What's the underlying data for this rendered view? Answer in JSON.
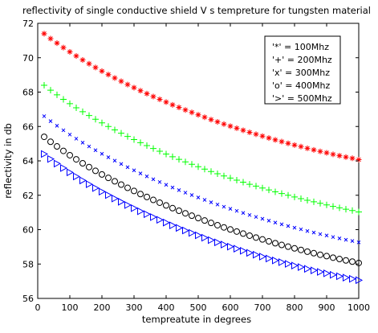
{
  "chart_data": {
    "type": "scatter",
    "title": "reflectivity of single conductive shield V s tempreture for tungsten material",
    "xlabel": "tempreatute in degrees",
    "ylabel": "reflectivity in db",
    "xlim": [
      0,
      1000
    ],
    "ylim": [
      56,
      72
    ],
    "xticks": [
      0,
      100,
      200,
      300,
      400,
      500,
      600,
      700,
      800,
      900,
      1000
    ],
    "yticks": [
      56,
      58,
      60,
      62,
      64,
      66,
      68,
      70,
      72
    ],
    "grid": false,
    "legend_position": "top-right",
    "x": [
      20,
      40,
      60,
      80,
      100,
      120,
      140,
      160,
      180,
      200,
      220,
      240,
      260,
      280,
      300,
      320,
      340,
      360,
      380,
      400,
      420,
      440,
      460,
      480,
      500,
      520,
      540,
      560,
      580,
      600,
      620,
      640,
      660,
      680,
      700,
      720,
      740,
      760,
      780,
      800,
      820,
      840,
      860,
      880,
      900,
      920,
      940,
      960,
      980,
      1000
    ],
    "series": [
      {
        "name": "'*' = 100Mhz",
        "marker": "*",
        "color": "#ff0000",
        "values": [
          71.4,
          71.11,
          70.85,
          70.59,
          70.34,
          70.1,
          69.87,
          69.65,
          69.43,
          69.22,
          69.02,
          68.82,
          68.63,
          68.44,
          68.26,
          68.08,
          67.91,
          67.74,
          67.58,
          67.42,
          67.26,
          67.11,
          66.96,
          66.82,
          66.68,
          66.54,
          66.4,
          66.27,
          66.14,
          66.02,
          65.9,
          65.78,
          65.66,
          65.55,
          65.44,
          65.33,
          65.22,
          65.12,
          65.02,
          64.92,
          64.83,
          64.73,
          64.64,
          64.55,
          64.47,
          64.38,
          64.3,
          64.22,
          64.15,
          64.07
        ]
      },
      {
        "name": "'+' = 200Mhz",
        "marker": "+",
        "color": "#00ff00",
        "values": [
          68.4,
          68.11,
          67.84,
          67.58,
          67.33,
          67.09,
          66.86,
          66.64,
          66.42,
          66.21,
          66.0,
          65.8,
          65.61,
          65.42,
          65.24,
          65.06,
          64.89,
          64.72,
          64.56,
          64.4,
          64.24,
          64.09,
          63.94,
          63.8,
          63.66,
          63.52,
          63.38,
          63.25,
          63.12,
          63.0,
          62.88,
          62.76,
          62.64,
          62.53,
          62.42,
          62.31,
          62.2,
          62.1,
          62.0,
          61.9,
          61.8,
          61.71,
          61.62,
          61.53,
          61.44,
          61.35,
          61.27,
          61.19,
          61.11,
          61.03
        ]
      },
      {
        "name": "'x' = 300Mhz",
        "marker": "x",
        "color": "#0000ff",
        "values": [
          66.6,
          66.31,
          66.04,
          65.78,
          65.53,
          65.29,
          65.06,
          64.84,
          64.62,
          64.41,
          64.21,
          64.01,
          63.82,
          63.63,
          63.45,
          63.27,
          63.1,
          62.93,
          62.77,
          62.61,
          62.45,
          62.3,
          62.15,
          62.01,
          61.87,
          61.73,
          61.59,
          61.46,
          61.33,
          61.21,
          61.09,
          60.97,
          60.85,
          60.74,
          60.63,
          60.52,
          60.41,
          60.31,
          60.21,
          60.11,
          60.02,
          59.92,
          59.83,
          59.74,
          59.66,
          59.57,
          59.49,
          59.41,
          59.34,
          59.26
        ]
      },
      {
        "name": "'o' = 400Mhz",
        "marker": "o",
        "color": "#000000",
        "values": [
          65.4,
          65.11,
          64.84,
          64.58,
          64.33,
          64.09,
          63.86,
          63.64,
          63.42,
          63.21,
          63.01,
          62.81,
          62.62,
          62.43,
          62.25,
          62.07,
          61.9,
          61.73,
          61.57,
          61.41,
          61.25,
          61.1,
          60.95,
          60.81,
          60.67,
          60.53,
          60.39,
          60.26,
          60.13,
          60.01,
          59.89,
          59.77,
          59.65,
          59.54,
          59.43,
          59.32,
          59.21,
          59.11,
          59.01,
          58.91,
          58.82,
          58.72,
          58.63,
          58.54,
          58.46,
          58.37,
          58.29,
          58.21,
          58.14,
          58.06
        ]
      },
      {
        "name": "'>' = 500Mhz",
        "marker": ">",
        "color": "#0000ff",
        "values": [
          64.4,
          64.11,
          63.84,
          63.58,
          63.33,
          63.09,
          62.86,
          62.64,
          62.42,
          62.21,
          62.01,
          61.81,
          61.62,
          61.43,
          61.25,
          61.07,
          60.9,
          60.73,
          60.57,
          60.41,
          60.25,
          60.1,
          59.95,
          59.81,
          59.67,
          59.53,
          59.39,
          59.26,
          59.13,
          59.01,
          58.89,
          58.77,
          58.65,
          58.54,
          58.43,
          58.32,
          58.21,
          58.11,
          58.01,
          57.91,
          57.82,
          57.72,
          57.63,
          57.54,
          57.46,
          57.37,
          57.29,
          57.21,
          57.14,
          57.06
        ]
      }
    ]
  }
}
